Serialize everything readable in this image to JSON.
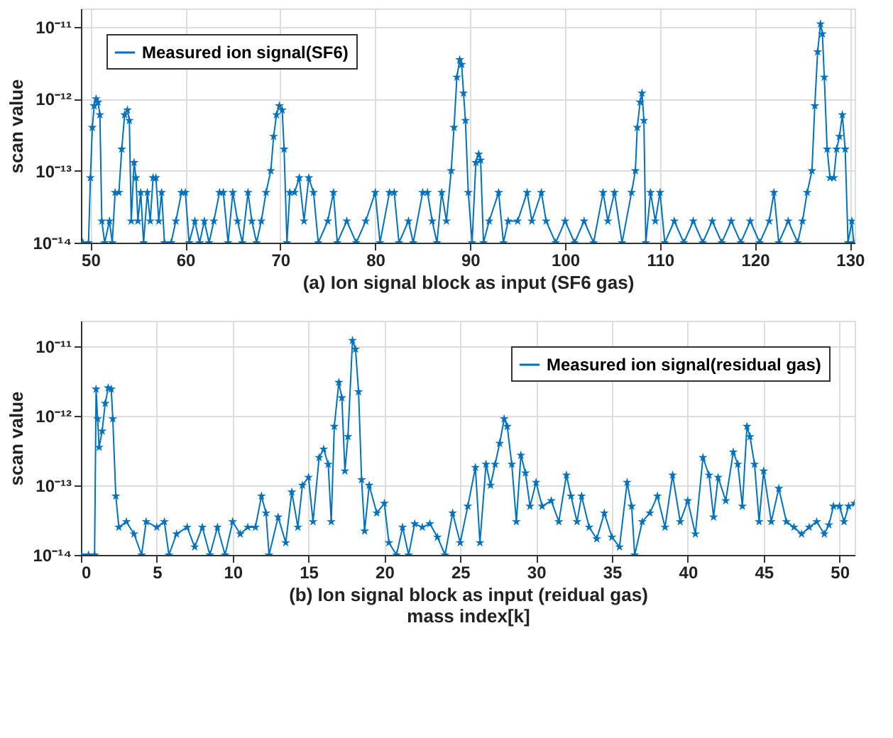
{
  "chart_data": [
    {
      "type": "line",
      "xlabel": "(a) Ion signal block as input (SF6 gas)",
      "ylabel": "scan value",
      "log": "y",
      "grid": true,
      "legend": "top left",
      "marker": "star",
      "line_style": "solid",
      "xlim": [
        49,
        130.5
      ],
      "xticks": [
        50,
        60,
        70,
        80,
        90,
        100,
        110,
        120,
        130
      ],
      "ylim": [
        1e-14,
        1.8e-11
      ],
      "yticks": [
        {
          "value": 1e-14,
          "label": "10⁻¹⁴"
        },
        {
          "value": 1e-13,
          "label": "10⁻¹³"
        },
        {
          "value": 1e-12,
          "label": "10⁻¹²"
        },
        {
          "value": 1e-11,
          "label": "10⁻¹¹"
        }
      ],
      "series": [
        {
          "name": "Measured ion signal(SF6)",
          "color": "#0072bd",
          "x": [
            49.2,
            49.8,
            50.0,
            50.2,
            50.4,
            50.6,
            50.8,
            51.0,
            51.2,
            51.5,
            52.0,
            52.3,
            52.6,
            53.0,
            53.3,
            53.6,
            53.9,
            54.1,
            54.3,
            54.6,
            54.8,
            55.0,
            55.3,
            55.6,
            56.0,
            56.3,
            56.6,
            56.9,
            57.2,
            57.5,
            57.8,
            58.5,
            59.0,
            59.6,
            60.0,
            60.4,
            61.0,
            61.5,
            62.0,
            62.5,
            63.0,
            63.6,
            64.0,
            64.5,
            65.0,
            65.5,
            66.0,
            66.6,
            67.0,
            67.5,
            68.0,
            68.5,
            69.0,
            69.3,
            69.6,
            69.9,
            70.2,
            70.4,
            70.7,
            71.0,
            71.5,
            72.0,
            72.5,
            73.0,
            73.5,
            74.0,
            75.0,
            75.6,
            76.0,
            77.0,
            78.0,
            79.0,
            80.0,
            80.5,
            81.5,
            82.0,
            82.5,
            83.5,
            84.0,
            85.0,
            85.5,
            86.0,
            86.5,
            87.0,
            87.5,
            88.0,
            88.3,
            88.6,
            88.9,
            89.1,
            89.3,
            89.5,
            89.8,
            90.2,
            90.6,
            90.9,
            91.1,
            91.4,
            92.0,
            93.0,
            93.5,
            94.0,
            95.0,
            96.0,
            96.5,
            97.5,
            98.0,
            99.0,
            100.0,
            101.0,
            102.0,
            103.0,
            104.0,
            104.5,
            105.2,
            106.0,
            107.0,
            107.4,
            107.6,
            107.9,
            108.1,
            108.3,
            108.5,
            109.0,
            109.5,
            110.0,
            110.5,
            111.5,
            112.5,
            113.5,
            114.5,
            115.5,
            116.5,
            117.5,
            118.5,
            119.5,
            120.5,
            121.5,
            122.0,
            122.5,
            123.5,
            124.5,
            125.0,
            125.5,
            126.0,
            126.3,
            126.6,
            126.9,
            127.1,
            127.3,
            127.6,
            127.9,
            128.3,
            128.6,
            128.9,
            129.2,
            129.5,
            129.8,
            130.2,
            130.4
          ],
          "values": [
            1e-14,
            1e-14,
            8e-14,
            4e-13,
            8e-13,
            1e-12,
            9e-13,
            6e-13,
            2e-14,
            1e-14,
            2e-14,
            1e-14,
            5e-14,
            5e-14,
            2e-13,
            6e-13,
            7e-13,
            5e-13,
            2e-14,
            1.3e-13,
            8e-14,
            2e-14,
            5e-14,
            1e-14,
            5e-14,
            2e-14,
            8e-14,
            8e-14,
            2e-14,
            5e-14,
            1e-14,
            1e-14,
            2e-14,
            5e-14,
            5e-14,
            1e-14,
            2e-14,
            1e-14,
            2e-14,
            1e-14,
            2e-14,
            5e-14,
            5e-14,
            1e-14,
            5e-14,
            2e-14,
            1e-14,
            5e-14,
            2e-14,
            1e-14,
            2e-14,
            5e-14,
            1e-13,
            3e-13,
            6e-13,
            8e-13,
            7e-13,
            2e-13,
            1e-14,
            5e-14,
            5e-14,
            8e-14,
            2e-14,
            8e-14,
            5e-14,
            1e-14,
            2e-14,
            5e-14,
            1e-14,
            2e-14,
            1e-14,
            2e-14,
            5e-14,
            1e-14,
            5e-14,
            5e-14,
            1e-14,
            2e-14,
            1e-14,
            5e-14,
            5e-14,
            2e-14,
            1e-14,
            5e-14,
            2e-14,
            1e-13,
            4e-13,
            2e-12,
            3.5e-12,
            3e-12,
            1.2e-12,
            5e-13,
            5e-14,
            1e-14,
            1.3e-13,
            1.7e-13,
            1.4e-13,
            1e-14,
            2e-14,
            5e-14,
            1e-14,
            2e-14,
            2e-14,
            5e-14,
            2e-14,
            5e-14,
            2e-14,
            1e-14,
            2e-14,
            1e-14,
            2e-14,
            1e-14,
            5e-14,
            2e-14,
            5e-14,
            1e-14,
            5e-14,
            1e-13,
            4e-13,
            9e-13,
            1.2e-12,
            5e-13,
            1e-14,
            5e-14,
            2e-14,
            5e-14,
            1e-14,
            2e-14,
            1e-14,
            2e-14,
            1e-14,
            2e-14,
            1e-14,
            2e-14,
            1e-14,
            2e-14,
            1e-14,
            2e-14,
            5e-14,
            1e-14,
            2e-14,
            1e-14,
            2e-14,
            5e-14,
            1e-13,
            8e-13,
            4.5e-12,
            1.1e-11,
            8e-12,
            2e-12,
            2e-13,
            8e-14,
            8e-14,
            2e-13,
            3e-13,
            6e-13,
            2e-13,
            1e-14,
            2e-14,
            1e-14
          ]
        }
      ]
    },
    {
      "type": "line",
      "xlabel": "(b) Ion signal block as input (reidual gas)\nmass index[k]",
      "ylabel": "scan value",
      "log": "y",
      "grid": true,
      "legend": "top right",
      "marker": "star",
      "line_style": "solid",
      "xlim": [
        0,
        51
      ],
      "xticks": [
        0,
        5,
        10,
        15,
        20,
        25,
        30,
        35,
        40,
        45,
        50
      ],
      "ylim": [
        1e-14,
        2.3e-11
      ],
      "yticks": [
        {
          "value": 1e-14,
          "label": "10⁻¹⁴"
        },
        {
          "value": 1e-13,
          "label": "10⁻¹³"
        },
        {
          "value": 1e-12,
          "label": "10⁻¹²"
        },
        {
          "value": 1e-11,
          "label": "10⁻¹¹"
        }
      ],
      "series": [
        {
          "name": "Measured ion signal(residual gas)",
          "color": "#0072bd",
          "x": [
            0,
            0.5,
            0.9,
            1.0,
            1.1,
            1.2,
            1.4,
            1.6,
            1.8,
            2.0,
            2.1,
            2.3,
            2.5,
            3.0,
            3.5,
            4.0,
            4.3,
            5.0,
            5.5,
            5.8,
            6.3,
            7.0,
            7.5,
            8.0,
            8.5,
            9.0,
            9.5,
            10.0,
            10.5,
            11.0,
            11.5,
            11.9,
            12.2,
            12.4,
            13.0,
            13.5,
            13.9,
            14.3,
            14.6,
            15.0,
            15.3,
            15.7,
            16.0,
            16.3,
            16.5,
            16.7,
            17.0,
            17.2,
            17.4,
            17.6,
            17.9,
            18.1,
            18.3,
            18.5,
            18.7,
            19.0,
            19.5,
            20.0,
            20.3,
            20.8,
            21.2,
            21.6,
            22.0,
            22.5,
            23.0,
            23.5,
            24.0,
            24.5,
            25.0,
            25.5,
            26.0,
            26.3,
            26.7,
            27.0,
            27.3,
            27.6,
            27.9,
            28.1,
            28.4,
            28.7,
            29.0,
            29.3,
            29.6,
            30.0,
            30.4,
            31.0,
            31.5,
            32.0,
            32.3,
            32.7,
            33.0,
            33.5,
            34.0,
            34.5,
            35.0,
            35.5,
            36.0,
            36.3,
            36.5,
            37.0,
            37.5,
            38.0,
            38.5,
            39.0,
            39.5,
            40.0,
            40.5,
            41.0,
            41.4,
            41.7,
            42.0,
            42.5,
            43.0,
            43.3,
            43.6,
            43.9,
            44.1,
            44.4,
            44.7,
            45.0,
            45.5,
            46.0,
            46.5,
            47.0,
            47.5,
            48.0,
            48.5,
            49.0,
            49.3,
            49.6,
            50.0,
            50.3,
            50.6,
            51.0
          ],
          "values": [
            1e-14,
            1e-14,
            1e-14,
            2.4e-12,
            9e-13,
            3.5e-13,
            6e-13,
            1.5e-12,
            2.5e-12,
            2.4e-12,
            9e-13,
            7e-14,
            2.5e-14,
            3e-14,
            2e-14,
            1e-14,
            3e-14,
            2.5e-14,
            3e-14,
            1e-14,
            2e-14,
            2.5e-14,
            1.3e-14,
            2.5e-14,
            1e-14,
            2.5e-14,
            1e-14,
            3e-14,
            2e-14,
            2.5e-14,
            2.5e-14,
            7e-14,
            4e-14,
            1e-14,
            3.5e-14,
            1.5e-14,
            8e-14,
            2.5e-14,
            1e-13,
            1.3e-13,
            3e-14,
            2.5e-13,
            3.3e-13,
            2e-13,
            3e-14,
            7e-13,
            3e-12,
            1.8e-12,
            1.6e-13,
            5e-13,
            1.2e-11,
            9e-12,
            2.2e-12,
            1.2e-13,
            2.2e-14,
            1e-13,
            4e-14,
            5.5e-14,
            1.5e-14,
            1e-14,
            2.5e-14,
            1e-14,
            2.8e-14,
            2.5e-14,
            2.8e-14,
            1.8e-14,
            1e-14,
            4e-14,
            1.5e-14,
            5e-14,
            1.8e-13,
            1.5e-14,
            2e-13,
            1e-13,
            2e-13,
            4e-13,
            9e-13,
            7e-13,
            2e-13,
            3e-14,
            2.7e-13,
            1.5e-13,
            5e-14,
            1.1e-13,
            5e-14,
            6e-14,
            3e-14,
            1.4e-13,
            7e-14,
            3e-14,
            7e-14,
            2.5e-14,
            1.7e-14,
            4e-14,
            1.8e-14,
            1.3e-14,
            1.1e-13,
            5e-14,
            1e-14,
            3e-14,
            4e-14,
            7e-14,
            2.5e-14,
            1.4e-13,
            3e-14,
            6e-14,
            2e-14,
            2.5e-13,
            1.4e-13,
            3.5e-14,
            1.3e-13,
            6e-14,
            3e-13,
            2e-13,
            5e-14,
            7e-13,
            5e-13,
            2e-13,
            3e-14,
            1.6e-13,
            3e-14,
            9e-14,
            3e-14,
            2.5e-14,
            2e-14,
            2.5e-14,
            3e-14,
            2e-14,
            2.7e-14,
            5e-14,
            5e-14,
            3e-14,
            5e-14,
            5.5e-14
          ]
        }
      ]
    }
  ]
}
